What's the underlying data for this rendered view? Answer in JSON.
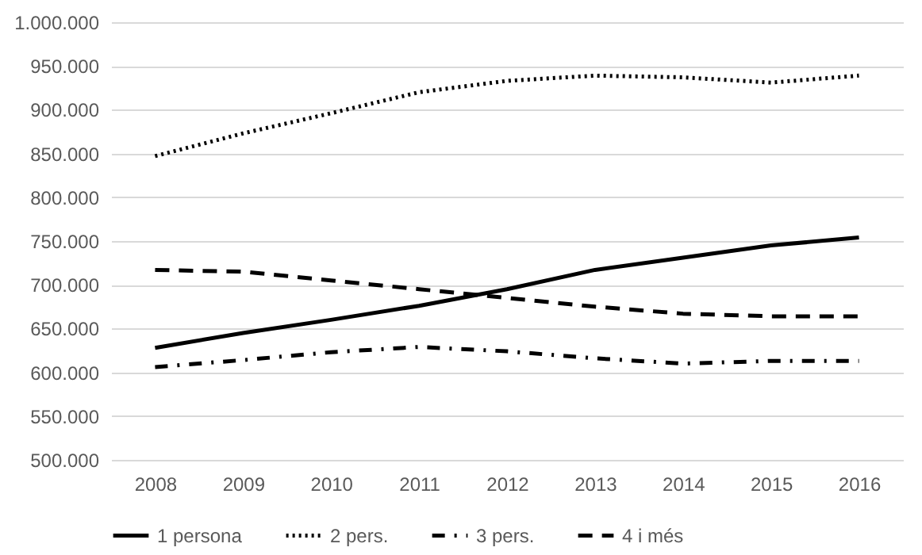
{
  "chart_data": {
    "type": "line",
    "categories": [
      "2008",
      "2009",
      "2010",
      "2011",
      "2012",
      "2013",
      "2014",
      "2015",
      "2016"
    ],
    "series": [
      {
        "name": "1 persona",
        "color": "#000000",
        "line_style": "solid",
        "values": [
          628000,
          645000,
          660000,
          676000,
          695000,
          717000,
          731000,
          745000,
          754000
        ]
      },
      {
        "name": "2 pers.",
        "color": "#000000",
        "line_style": "dotted",
        "values": [
          847000,
          873000,
          896000,
          920000,
          933000,
          939000,
          937000,
          931000,
          939000
        ]
      },
      {
        "name": "3 pers.",
        "color": "#000000",
        "line_style": "dashdot",
        "values": [
          606000,
          614000,
          623000,
          629000,
          624000,
          616000,
          610000,
          613000,
          613000
        ]
      },
      {
        "name": "4 i més",
        "color": "#000000",
        "line_style": "dashed",
        "values": [
          717000,
          715000,
          705000,
          695000,
          685000,
          675000,
          667000,
          664000,
          664000
        ]
      }
    ],
    "ylim": [
      500000,
      1000000
    ],
    "yticks": [
      {
        "value": 500000,
        "label": "500.000"
      },
      {
        "value": 550000,
        "label": "550.000"
      },
      {
        "value": 600000,
        "label": "600.000"
      },
      {
        "value": 650000,
        "label": "650.000"
      },
      {
        "value": 700000,
        "label": "700.000"
      },
      {
        "value": 750000,
        "label": "750.000"
      },
      {
        "value": 800000,
        "label": "800.000"
      },
      {
        "value": 850000,
        "label": "850.000"
      },
      {
        "value": 900000,
        "label": "900.000"
      },
      {
        "value": 950000,
        "label": "950.000"
      },
      {
        "value": 1000000,
        "label": "1.000.000"
      }
    ],
    "grid": "y",
    "legend": "bottom"
  }
}
